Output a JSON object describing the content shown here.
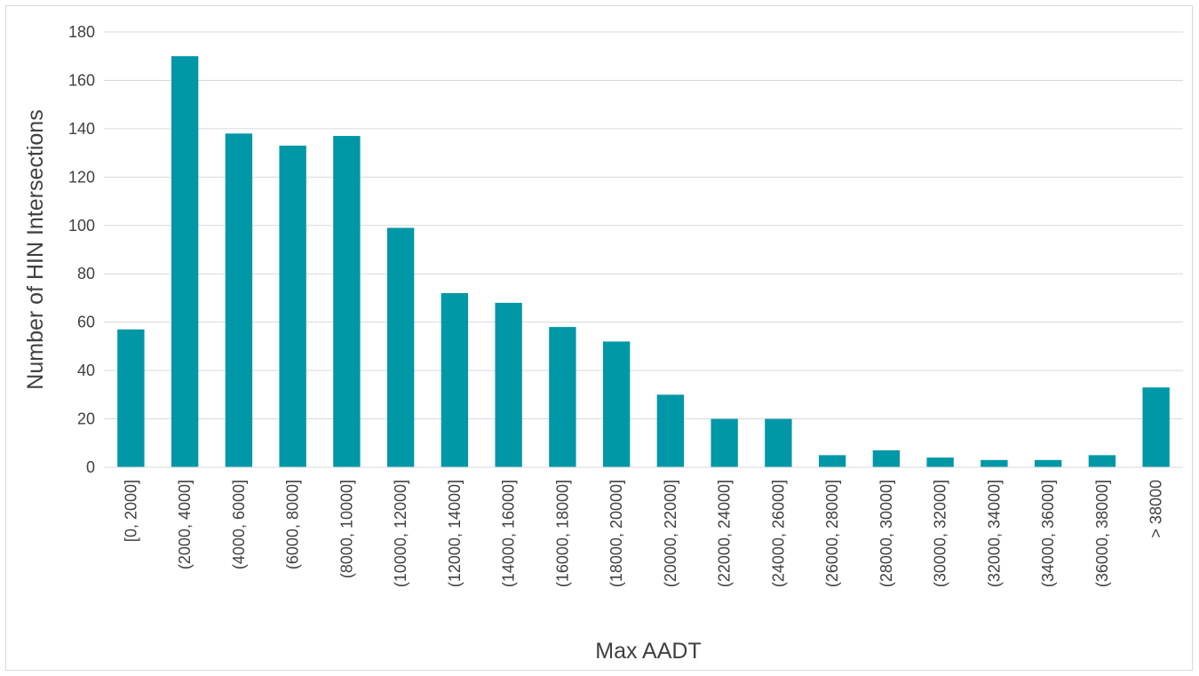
{
  "chart_data": {
    "type": "bar",
    "xlabel": "Max AADT",
    "ylabel": "Number of HIN Intersections",
    "ylim": [
      0,
      180
    ],
    "yticks": [
      0,
      20,
      40,
      60,
      80,
      100,
      120,
      140,
      160,
      180
    ],
    "grid": true,
    "bar_color": "#0097A7",
    "categories": [
      "[0, 2000]",
      "(2000, 4000]",
      "(4000, 6000]",
      "(6000, 8000]",
      "(8000, 10000]",
      "(10000, 12000]",
      "(12000, 14000]",
      "(14000, 16000]",
      "(16000, 18000]",
      "(18000, 20000]",
      "(20000, 22000]",
      "(22000, 24000]",
      "(24000, 26000]",
      "(26000, 28000]",
      "(28000, 30000]",
      "(30000, 32000]",
      "(32000, 34000]",
      "(34000, 36000]",
      "(36000, 38000]",
      "> 38000"
    ],
    "values": [
      57,
      170,
      138,
      133,
      137,
      99,
      72,
      68,
      58,
      52,
      30,
      20,
      20,
      5,
      7,
      4,
      3,
      3,
      5,
      33
    ]
  }
}
